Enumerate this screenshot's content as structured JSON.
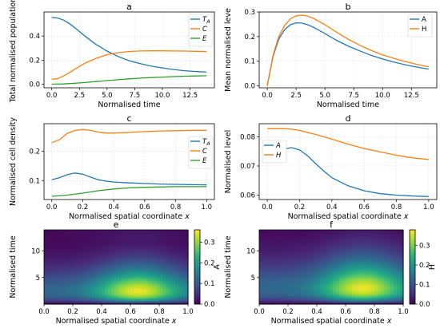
{
  "chart_data": [
    {
      "id": "a",
      "type": "line",
      "title": "a",
      "xlabel": "Normalised time",
      "ylabel": "Total normalised population",
      "xlim": [
        -0.7,
        14.7
      ],
      "ylim": [
        -0.03,
        0.6
      ],
      "xticks": [
        0,
        2.5,
        5,
        7.5,
        10,
        12.5
      ],
      "xticklabels": [
        "0.0",
        "2.5",
        "5.0",
        "7.5",
        "10.0",
        "12.5"
      ],
      "yticks": [
        0,
        0.2,
        0.4
      ],
      "yticklabels": [
        "0.0",
        "0.2",
        "0.4"
      ],
      "grid": true,
      "legend": "right",
      "series": [
        {
          "name": "T_A",
          "color": "#1f77b4",
          "x": [
            0,
            0.5,
            1,
            1.5,
            2,
            3,
            4,
            5,
            6,
            7,
            8,
            9,
            10,
            11,
            12,
            13,
            14
          ],
          "y": [
            0.555,
            0.55,
            0.535,
            0.51,
            0.475,
            0.4,
            0.33,
            0.275,
            0.23,
            0.195,
            0.17,
            0.15,
            0.135,
            0.122,
            0.112,
            0.105,
            0.1
          ]
        },
        {
          "name": "C",
          "color": "#ff7f0e",
          "x": [
            0,
            0.5,
            1,
            1.5,
            2,
            3,
            4,
            5,
            6,
            7,
            8,
            9,
            10,
            11,
            12,
            13,
            14
          ],
          "y": [
            0.04,
            0.045,
            0.065,
            0.09,
            0.12,
            0.175,
            0.215,
            0.245,
            0.262,
            0.272,
            0.276,
            0.277,
            0.277,
            0.276,
            0.275,
            0.273,
            0.272
          ]
        },
        {
          "name": "E",
          "color": "#2ca02c",
          "x": [
            0,
            1,
            2,
            3,
            4,
            5,
            6,
            7,
            8,
            9,
            10,
            11,
            12,
            13,
            14
          ],
          "y": [
            0.0,
            0.002,
            0.007,
            0.014,
            0.022,
            0.03,
            0.037,
            0.044,
            0.05,
            0.055,
            0.059,
            0.063,
            0.066,
            0.068,
            0.07
          ]
        }
      ]
    },
    {
      "id": "b",
      "type": "line",
      "title": "b",
      "xlabel": "Normalised time",
      "ylabel": "Mean normalised leve",
      "xlim": [
        -0.7,
        14.7
      ],
      "ylim": [
        -0.008,
        0.3
      ],
      "xticks": [
        0,
        2.5,
        5,
        7.5,
        10,
        12.5
      ],
      "xticklabels": [
        "0.0",
        "2.5",
        "5.0",
        "7.5",
        "10.0",
        "12.5"
      ],
      "yticks": [
        0,
        0.1,
        0.2,
        0.3
      ],
      "yticklabels": [
        "0.0",
        "0.1",
        "0.2",
        "0.3"
      ],
      "grid": true,
      "legend": "top-right",
      "series": [
        {
          "name": "A",
          "color": "#1f77b4",
          "x": [
            0,
            0.5,
            1,
            1.5,
            2,
            2.5,
            3,
            3.5,
            4,
            5,
            6,
            7,
            8,
            9,
            10,
            11,
            12,
            13,
            14
          ],
          "y": [
            0.0,
            0.12,
            0.19,
            0.228,
            0.248,
            0.256,
            0.255,
            0.248,
            0.238,
            0.212,
            0.185,
            0.162,
            0.142,
            0.124,
            0.109,
            0.096,
            0.085,
            0.076,
            0.068
          ]
        },
        {
          "name": "H",
          "color": "#ff7f0e",
          "x": [
            0,
            0.5,
            1,
            1.5,
            2,
            2.5,
            3,
            3.5,
            4,
            5,
            6,
            7,
            8,
            9,
            10,
            11,
            12,
            13,
            14
          ],
          "y": [
            0.0,
            0.125,
            0.2,
            0.245,
            0.272,
            0.284,
            0.287,
            0.283,
            0.274,
            0.248,
            0.218,
            0.19,
            0.165,
            0.144,
            0.126,
            0.111,
            0.098,
            0.087,
            0.077
          ]
        }
      ]
    },
    {
      "id": "c",
      "type": "line",
      "title": "c",
      "xlabel": "Normalised spatial coordinate x",
      "ylabel": "Normalised cell density",
      "xlim": [
        -0.05,
        1.05
      ],
      "ylim": [
        0.035,
        0.295
      ],
      "xticks": [
        0,
        0.2,
        0.4,
        0.6,
        0.8,
        1.0
      ],
      "xticklabels": [
        "0.0",
        "0.2",
        "0.4",
        "0.6",
        "0.8",
        "1.0"
      ],
      "yticks": [
        0.1,
        0.2
      ],
      "yticklabels": [
        "0.1",
        "0.2"
      ],
      "grid": true,
      "legend": "right",
      "series": [
        {
          "name": "T_A",
          "color": "#1f77b4",
          "x": [
            0,
            0.05,
            0.1,
            0.15,
            0.2,
            0.25,
            0.3,
            0.35,
            0.4,
            0.5,
            0.6,
            0.7,
            0.8,
            0.9,
            1.0
          ],
          "y": [
            0.103,
            0.11,
            0.12,
            0.126,
            0.122,
            0.112,
            0.103,
            0.098,
            0.095,
            0.092,
            0.09,
            0.088,
            0.087,
            0.086,
            0.085
          ]
        },
        {
          "name": "C",
          "color": "#ff7f0e",
          "x": [
            0,
            0.05,
            0.1,
            0.15,
            0.2,
            0.25,
            0.3,
            0.35,
            0.4,
            0.5,
            0.6,
            0.7,
            0.8,
            0.9,
            1.0
          ],
          "y": [
            0.23,
            0.24,
            0.262,
            0.272,
            0.275,
            0.272,
            0.266,
            0.263,
            0.263,
            0.265,
            0.268,
            0.27,
            0.271,
            0.272,
            0.272
          ]
        },
        {
          "name": "E",
          "color": "#2ca02c",
          "x": [
            0,
            0.1,
            0.2,
            0.3,
            0.4,
            0.5,
            0.6,
            0.7,
            0.8,
            0.9,
            1.0
          ],
          "y": [
            0.046,
            0.05,
            0.057,
            0.065,
            0.071,
            0.075,
            0.077,
            0.078,
            0.079,
            0.079,
            0.079
          ]
        }
      ]
    },
    {
      "id": "d",
      "type": "line",
      "title": "d",
      "xlabel": "Normalised spatial coordinate x",
      "ylabel": "Normalised level",
      "xlim": [
        -0.05,
        1.05
      ],
      "ylim": [
        0.0585,
        0.0845
      ],
      "xticks": [
        0,
        0.2,
        0.4,
        0.6,
        0.8,
        1.0
      ],
      "xticklabels": [
        "0.0",
        "0.2",
        "0.4",
        "0.6",
        "0.8",
        "1.0"
      ],
      "yticks": [
        0.06,
        0.07,
        0.08
      ],
      "yticklabels": [
        "0.06",
        "0.07",
        "0.08"
      ],
      "grid": true,
      "legend": "left",
      "series": [
        {
          "name": "A",
          "color": "#1f77b4",
          "x": [
            0,
            0.05,
            0.1,
            0.15,
            0.2,
            0.25,
            0.3,
            0.35,
            0.4,
            0.5,
            0.6,
            0.7,
            0.8,
            0.9,
            1.0
          ],
          "y": [
            0.0735,
            0.0745,
            0.0758,
            0.0763,
            0.0755,
            0.0735,
            0.0708,
            0.0683,
            0.066,
            0.0632,
            0.0615,
            0.0605,
            0.06,
            0.0597,
            0.0595
          ]
        },
        {
          "name": "H",
          "color": "#ff7f0e",
          "x": [
            0,
            0.1,
            0.15,
            0.2,
            0.3,
            0.4,
            0.5,
            0.6,
            0.7,
            0.8,
            0.9,
            1.0
          ],
          "y": [
            0.0828,
            0.0828,
            0.0826,
            0.0822,
            0.0808,
            0.0792,
            0.0775,
            0.076,
            0.0748,
            0.0737,
            0.0728,
            0.0722
          ]
        }
      ]
    },
    {
      "id": "e",
      "type": "heatmap",
      "title": "e",
      "xlabel": "Normalised spatial coordinate x",
      "ylabel": "Normalised time",
      "xlim": [
        0,
        1
      ],
      "ylim": [
        0,
        14
      ],
      "xticks": [
        0,
        0.2,
        0.4,
        0.6,
        0.8,
        1.0
      ],
      "xticklabels": [
        "0.0",
        "0.2",
        "0.4",
        "0.6",
        "0.8",
        "1.0"
      ],
      "yticks": [
        5,
        10
      ],
      "yticklabels": [
        "5",
        "10"
      ],
      "colorbar": {
        "label": "A",
        "range": [
          0,
          0.36
        ],
        "ticks": [
          0,
          0.1,
          0.2,
          0.3
        ],
        "ticklabels": [
          "0.0",
          "0.1",
          "0.2",
          "0.3"
        ]
      },
      "peak": {
        "x": 0.65,
        "t": 2.5,
        "value": 0.35
      }
    },
    {
      "id": "f",
      "type": "heatmap",
      "title": "f",
      "xlabel": "Normalised spatial coordinate x",
      "ylabel": "Normalised time",
      "xlim": [
        0,
        1
      ],
      "ylim": [
        0,
        14
      ],
      "xticks": [
        0,
        0.2,
        0.4,
        0.6,
        0.8,
        1.0
      ],
      "xticklabels": [
        "0.0",
        "0.2",
        "0.4",
        "0.6",
        "0.8",
        "1.0"
      ],
      "yticks": [
        5,
        10
      ],
      "yticklabels": [
        "5",
        "10"
      ],
      "colorbar": {
        "label": "H",
        "range": [
          0,
          0.38
        ],
        "ticks": [
          0,
          0.1,
          0.2,
          0.3
        ],
        "ticklabels": [
          "0.0",
          "0.1",
          "0.2",
          "0.3"
        ]
      },
      "peak": {
        "x": 0.72,
        "t": 3.0,
        "value": 0.37
      }
    }
  ]
}
